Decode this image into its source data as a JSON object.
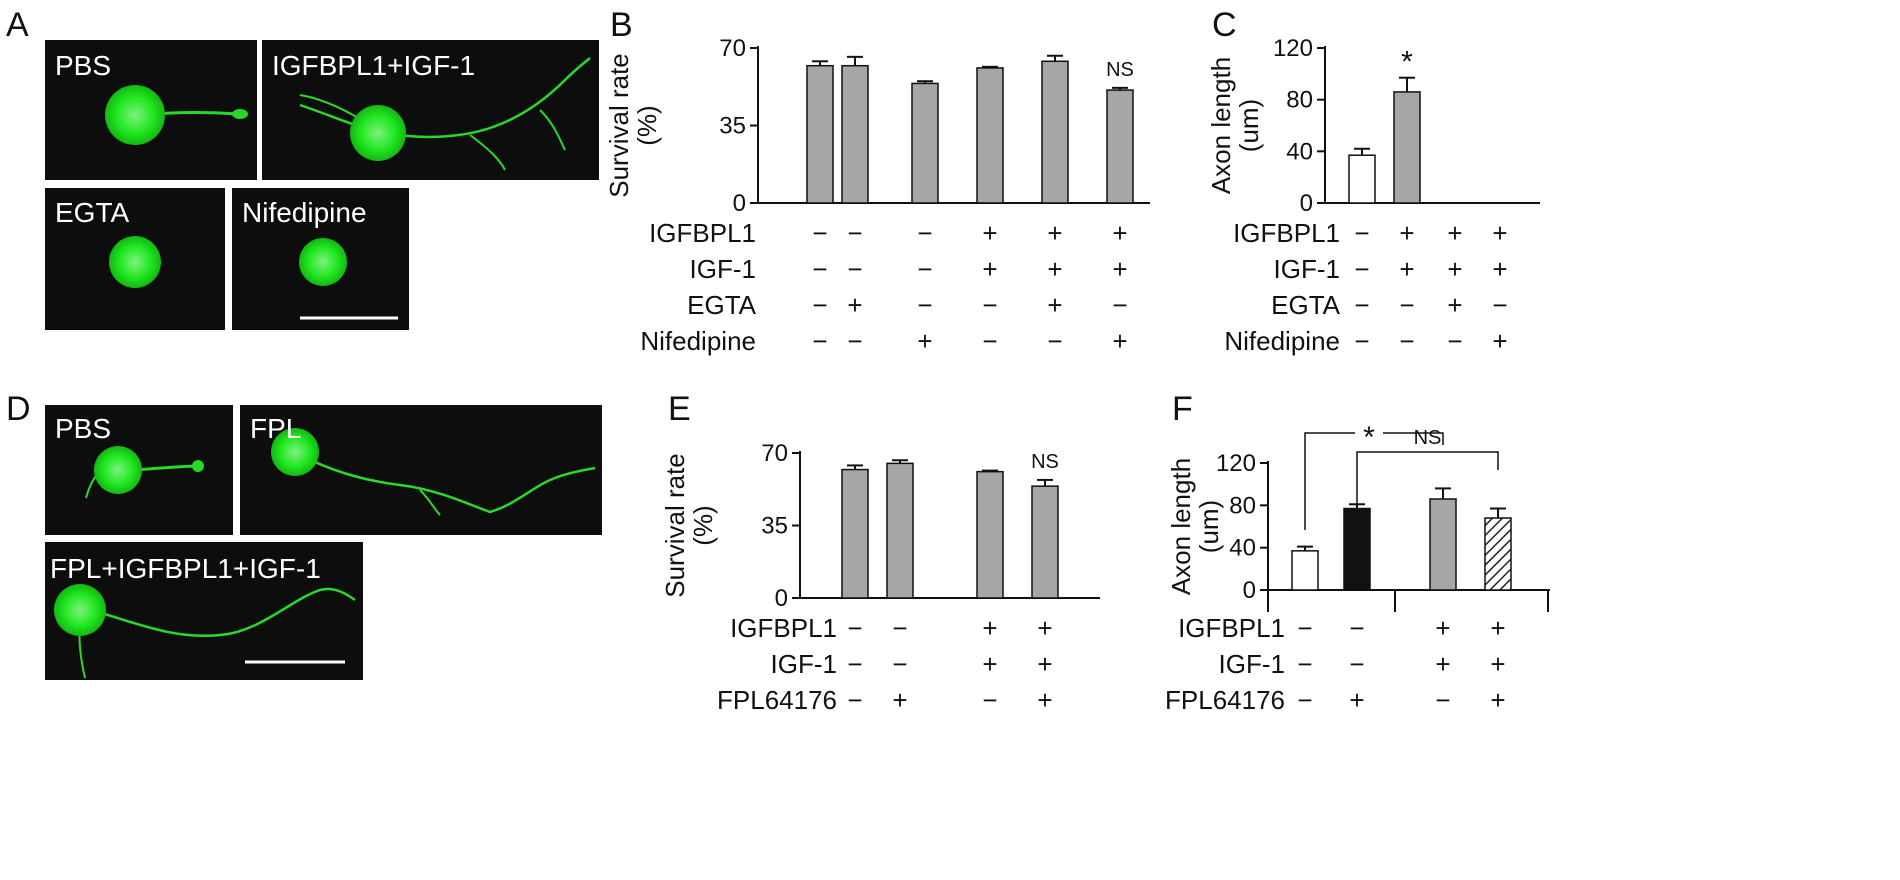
{
  "panels": {
    "A": {
      "letter": "A",
      "images": [
        {
          "label": "PBS"
        },
        {
          "label": "IGFBPL1+IGF-1"
        },
        {
          "label": "EGTA"
        },
        {
          "label": "Nifedipine"
        }
      ]
    },
    "D": {
      "letter": "D",
      "images": [
        {
          "label": "PBS"
        },
        {
          "label": "FPL"
        },
        {
          "label": "FPL+IGFBPL1+IGF-1"
        }
      ]
    }
  },
  "colors": {
    "micrograph_bg": "#0d0d0d",
    "cell_green": "#1ee61e",
    "bar_gray": "#a6a6a6",
    "bar_black": "#111111",
    "bar_white": "#ffffff"
  },
  "chart_data": [
    {
      "panel": "B",
      "type": "bar",
      "ylabel_line1": "Survival rate",
      "ylabel_line2": "(%)",
      "ylim": [
        0,
        70
      ],
      "yticks": [
        0,
        35,
        70
      ],
      "values": [
        62,
        62,
        54,
        61,
        64,
        51
      ],
      "errors": [
        2,
        4,
        1,
        0.5,
        2.5,
        1
      ],
      "bar_colors": [
        "#a6a6a6",
        "#a6a6a6",
        "#a6a6a6",
        "#a6a6a6",
        "#a6a6a6",
        "#a6a6a6"
      ],
      "annotations": [
        {
          "index": 5,
          "text": "NS"
        }
      ],
      "conditions": [
        {
          "name": "IGFBPL1",
          "signs": [
            "−",
            "−",
            "−",
            "+",
            "+",
            "+"
          ]
        },
        {
          "name": "IGF-1",
          "signs": [
            "−",
            "−",
            "−",
            "+",
            "+",
            "+"
          ]
        },
        {
          "name": "EGTA",
          "signs": [
            "−",
            "+",
            "−",
            "−",
            "+",
            "−"
          ]
        },
        {
          "name": "Nifedipine",
          "signs": [
            "−",
            "−",
            "+",
            "−",
            "−",
            "+"
          ]
        }
      ]
    },
    {
      "panel": "C",
      "type": "bar",
      "ylabel_line1": "Axon length",
      "ylabel_line2": "(um)",
      "ylim": [
        0,
        120
      ],
      "yticks": [
        0,
        40,
        80,
        120
      ],
      "values": [
        37,
        86,
        0,
        0
      ],
      "errors": [
        5,
        11,
        0,
        0
      ],
      "bar_colors": [
        "#ffffff",
        "#a6a6a6",
        "#a6a6a6",
        "#a6a6a6"
      ],
      "annotations": [
        {
          "index": 1,
          "text": "*"
        }
      ],
      "conditions": [
        {
          "name": "IGFBPL1",
          "signs": [
            "−",
            "+",
            "+",
            "+"
          ]
        },
        {
          "name": "IGF-1",
          "signs": [
            "−",
            "+",
            "+",
            "+"
          ]
        },
        {
          "name": "EGTA",
          "signs": [
            "−",
            "−",
            "+",
            "−"
          ]
        },
        {
          "name": "Nifedipine",
          "signs": [
            "−",
            "−",
            "−",
            "+"
          ]
        }
      ]
    },
    {
      "panel": "E",
      "type": "bar",
      "ylabel_line1": "Survival rate",
      "ylabel_line2": "(%)",
      "ylim": [
        0,
        70
      ],
      "yticks": [
        0,
        35,
        70
      ],
      "values": [
        62,
        65,
        61,
        54
      ],
      "errors": [
        2,
        1.5,
        0.5,
        3
      ],
      "bar_colors": [
        "#a6a6a6",
        "#a6a6a6",
        "#a6a6a6",
        "#a6a6a6"
      ],
      "annotations": [
        {
          "index": 3,
          "text": "NS"
        }
      ],
      "conditions": [
        {
          "name": "IGFBPL1",
          "signs": [
            "−",
            "−",
            "+",
            "+"
          ]
        },
        {
          "name": "IGF-1",
          "signs": [
            "−",
            "−",
            "+",
            "+"
          ]
        },
        {
          "name": "FPL64176",
          "signs": [
            "−",
            "+",
            "−",
            "+"
          ]
        }
      ]
    },
    {
      "panel": "F",
      "type": "bar",
      "ylabel_line1": "Axon length",
      "ylabel_line2": "(um)",
      "ylim": [
        0,
        120
      ],
      "yticks": [
        0,
        40,
        80,
        120
      ],
      "values": [
        37,
        77,
        86,
        68
      ],
      "errors": [
        4,
        4,
        10,
        9
      ],
      "bar_colors": [
        "#ffffff",
        "#111111",
        "#a6a6a6",
        "hatch"
      ],
      "annotations": [],
      "brackets": [
        {
          "from": 0,
          "to": 2,
          "text": "*"
        },
        {
          "from": 1,
          "to": 3,
          "text": "NS"
        }
      ],
      "conditions": [
        {
          "name": "IGFBPL1",
          "signs": [
            "−",
            "−",
            "+",
            "+"
          ]
        },
        {
          "name": "IGF-1",
          "signs": [
            "−",
            "−",
            "+",
            "+"
          ]
        },
        {
          "name": "FPL64176",
          "signs": [
            "−",
            "+",
            "−",
            "+"
          ]
        }
      ]
    }
  ]
}
